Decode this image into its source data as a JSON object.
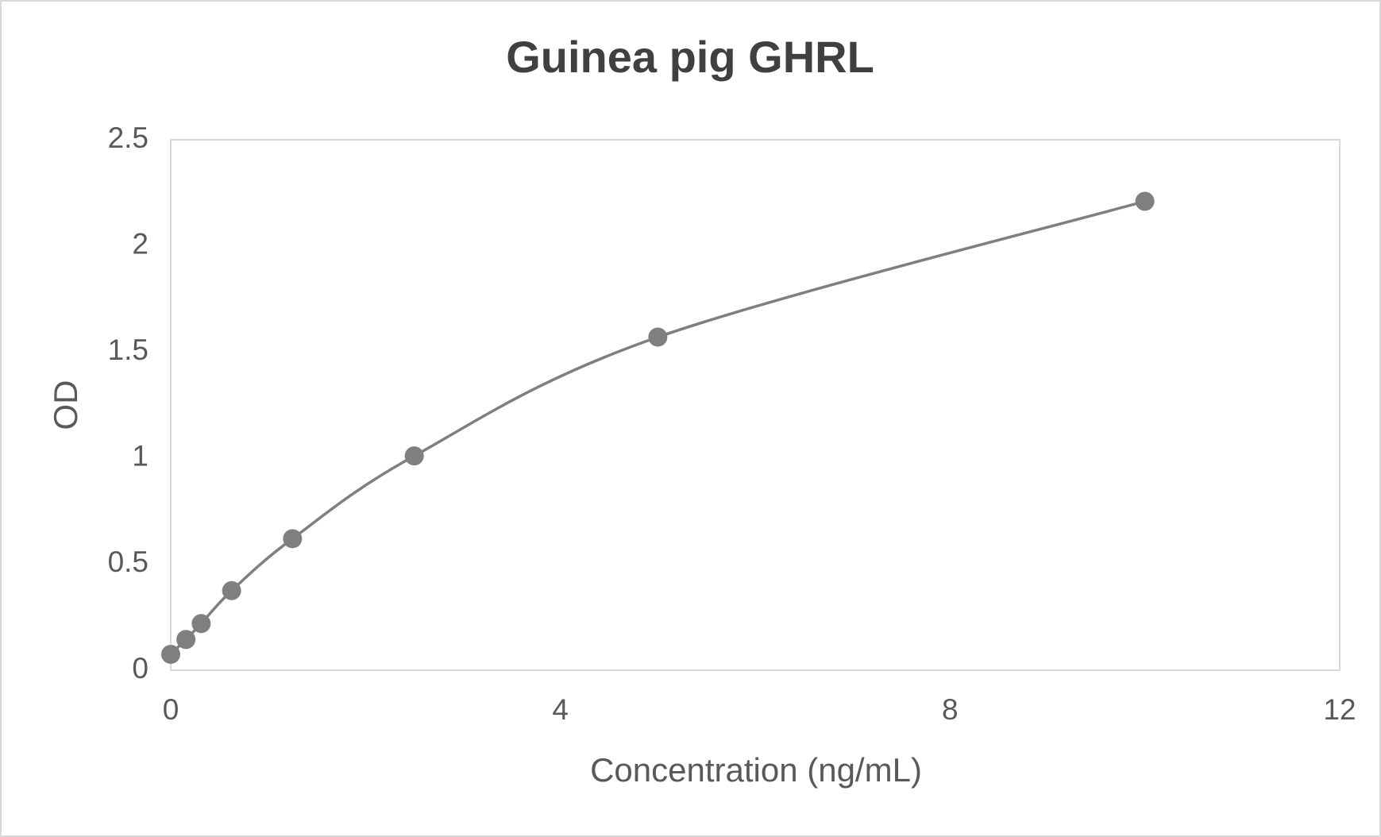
{
  "chart_data": {
    "type": "scatter",
    "title": "Guinea pig GHRL",
    "x_label": "Concentration (ng/mL)",
    "y_label": "OD",
    "series": [
      {
        "color": "#7f7f7f",
        "x": [
          0,
          0.156,
          0.3125,
          0.625,
          1.25,
          2.5,
          5,
          10
        ],
        "values": [
          0.075,
          0.145,
          0.22,
          0.375,
          0.62,
          1.01,
          1.57,
          2.21
        ]
      }
    ],
    "smooth_line": true,
    "xlim": [
      0,
      12
    ],
    "xticks": [
      0,
      4,
      8,
      12
    ],
    "ylim": [
      0,
      2.5
    ],
    "yticks": [
      0,
      0.5,
      1,
      1.5,
      2,
      2.5
    ],
    "grid": false
  }
}
